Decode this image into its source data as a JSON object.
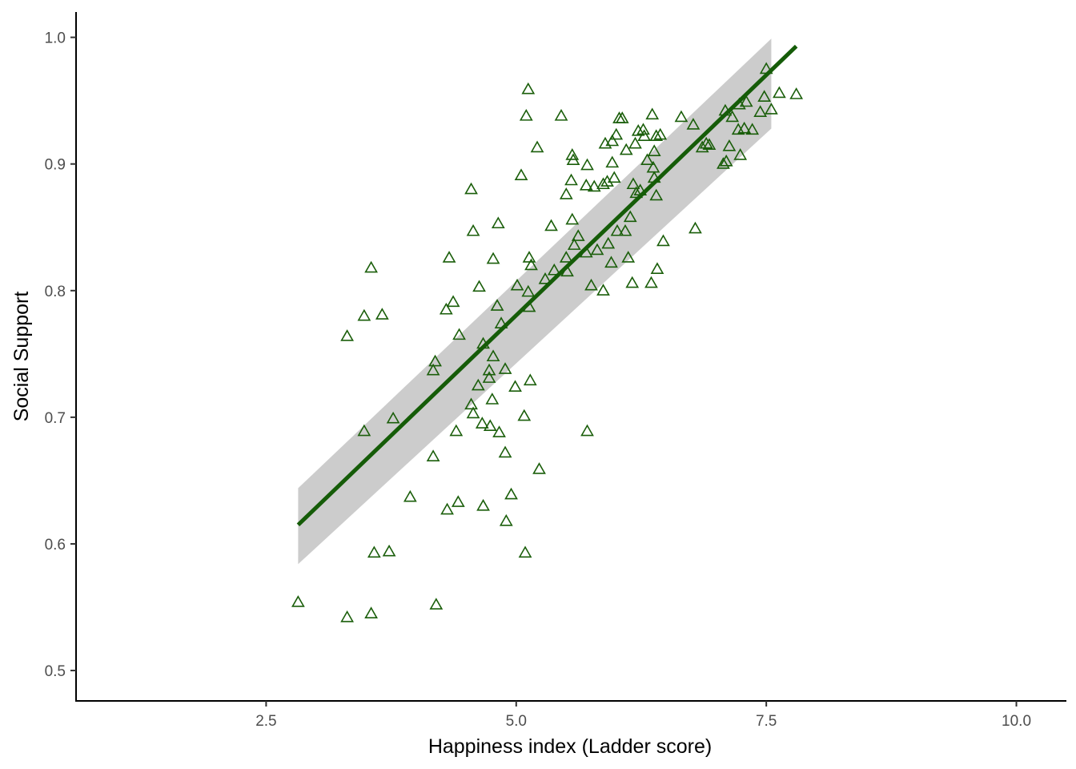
{
  "chart_data": {
    "type": "scatter",
    "title": "",
    "xlabel": "Happiness index (Ladder score)",
    "ylabel": "Social Support",
    "xlim": [
      0.6,
      10.5
    ],
    "ylim": [
      0.476,
      1.02
    ],
    "x_ticks": [
      2.5,
      5.0,
      7.5,
      10.0
    ],
    "x_tick_labels": [
      "2.5",
      "5.0",
      "7.5",
      "10.0"
    ],
    "y_ticks": [
      0.5,
      0.6,
      0.7,
      0.8,
      0.9,
      1.0
    ],
    "y_tick_labels": [
      "0.5",
      "0.6",
      "0.7",
      "0.8",
      "0.9",
      "1.0"
    ],
    "grid": false,
    "legend": "none",
    "marker": "open-triangle",
    "colors": {
      "points": "#1a5e0a",
      "fit_line": "#155c08",
      "confidence_band": "#cccccc",
      "axis": "#000000"
    },
    "fit": {
      "method": "linear",
      "x_range": [
        2.82,
        7.8
      ],
      "y_range": [
        0.615,
        0.993
      ],
      "ci_lower": [
        0.584,
        0.928
      ],
      "ci_upper": [
        0.644,
        0.999
      ],
      "ci_x_range": [
        2.82,
        7.55
      ]
    },
    "points": [
      [
        2.82,
        0.554
      ],
      [
        3.31,
        0.542
      ],
      [
        3.55,
        0.545
      ],
      [
        4.2,
        0.552
      ],
      [
        3.58,
        0.593
      ],
      [
        3.73,
        0.594
      ],
      [
        5.09,
        0.593
      ],
      [
        3.31,
        0.764
      ],
      [
        3.48,
        0.78
      ],
      [
        3.66,
        0.781
      ],
      [
        3.55,
        0.818
      ],
      [
        3.48,
        0.689
      ],
      [
        3.77,
        0.699
      ],
      [
        3.94,
        0.637
      ],
      [
        4.17,
        0.669
      ],
      [
        4.31,
        0.627
      ],
      [
        4.42,
        0.633
      ],
      [
        4.67,
        0.63
      ],
      [
        4.95,
        0.639
      ],
      [
        4.9,
        0.618
      ],
      [
        5.23,
        0.659
      ],
      [
        4.17,
        0.737
      ],
      [
        4.19,
        0.744
      ],
      [
        4.3,
        0.785
      ],
      [
        4.37,
        0.791
      ],
      [
        4.43,
        0.765
      ],
      [
        4.33,
        0.826
      ],
      [
        4.4,
        0.689
      ],
      [
        4.55,
        0.88
      ],
      [
        4.57,
        0.847
      ],
      [
        4.63,
        0.803
      ],
      [
        4.77,
        0.825
      ],
      [
        4.82,
        0.853
      ],
      [
        4.81,
        0.788
      ],
      [
        4.85,
        0.774
      ],
      [
        4.67,
        0.758
      ],
      [
        4.77,
        0.748
      ],
      [
        4.73,
        0.737
      ],
      [
        4.73,
        0.731
      ],
      [
        4.89,
        0.738
      ],
      [
        4.62,
        0.725
      ],
      [
        4.76,
        0.714
      ],
      [
        4.55,
        0.71
      ],
      [
        4.57,
        0.703
      ],
      [
        4.66,
        0.695
      ],
      [
        4.74,
        0.693
      ],
      [
        4.83,
        0.688
      ],
      [
        4.89,
        0.672
      ],
      [
        4.99,
        0.724
      ],
      [
        5.08,
        0.701
      ],
      [
        5.14,
        0.729
      ],
      [
        5.01,
        0.804
      ],
      [
        5.12,
        0.799
      ],
      [
        5.13,
        0.787
      ],
      [
        5.13,
        0.826
      ],
      [
        5.15,
        0.82
      ],
      [
        5.05,
        0.891
      ],
      [
        5.1,
        0.938
      ],
      [
        5.12,
        0.959
      ],
      [
        5.21,
        0.913
      ],
      [
        5.29,
        0.809
      ],
      [
        5.35,
        0.851
      ],
      [
        5.38,
        0.816
      ],
      [
        5.45,
        0.938
      ],
      [
        5.5,
        0.826
      ],
      [
        5.51,
        0.815
      ],
      [
        5.5,
        0.876
      ],
      [
        5.55,
        0.887
      ],
      [
        5.56,
        0.856
      ],
      [
        5.56,
        0.907
      ],
      [
        5.57,
        0.903
      ],
      [
        5.58,
        0.836
      ],
      [
        5.62,
        0.843
      ],
      [
        5.7,
        0.83
      ],
      [
        5.7,
        0.883
      ],
      [
        5.71,
        0.899
      ],
      [
        5.75,
        0.804
      ],
      [
        5.71,
        0.689
      ],
      [
        5.78,
        0.882
      ],
      [
        5.81,
        0.832
      ],
      [
        5.87,
        0.8
      ],
      [
        5.87,
        0.884
      ],
      [
        5.89,
        0.916
      ],
      [
        5.91,
        0.886
      ],
      [
        5.92,
        0.837
      ],
      [
        5.95,
        0.822
      ],
      [
        5.96,
        0.918
      ],
      [
        5.96,
        0.901
      ],
      [
        5.98,
        0.889
      ],
      [
        6.0,
        0.923
      ],
      [
        6.01,
        0.847
      ],
      [
        6.03,
        0.936
      ],
      [
        6.06,
        0.936
      ],
      [
        6.09,
        0.847
      ],
      [
        6.1,
        0.911
      ],
      [
        6.12,
        0.826
      ],
      [
        6.14,
        0.858
      ],
      [
        6.16,
        0.806
      ],
      [
        6.17,
        0.884
      ],
      [
        6.19,
        0.916
      ],
      [
        6.2,
        0.877
      ],
      [
        6.22,
        0.926
      ],
      [
        6.24,
        0.879
      ],
      [
        6.27,
        0.927
      ],
      [
        6.28,
        0.922
      ],
      [
        6.31,
        0.903
      ],
      [
        6.35,
        0.806
      ],
      [
        6.36,
        0.939
      ],
      [
        6.37,
        0.897
      ],
      [
        6.38,
        0.91
      ],
      [
        6.38,
        0.889
      ],
      [
        6.4,
        0.922
      ],
      [
        6.4,
        0.875
      ],
      [
        6.41,
        0.817
      ],
      [
        6.44,
        0.923
      ],
      [
        6.47,
        0.839
      ],
      [
        6.65,
        0.937
      ],
      [
        6.77,
        0.931
      ],
      [
        6.79,
        0.849
      ],
      [
        6.86,
        0.913
      ],
      [
        6.9,
        0.916
      ],
      [
        6.93,
        0.915
      ],
      [
        7.07,
        0.9
      ],
      [
        7.09,
        0.942
      ],
      [
        7.1,
        0.902
      ],
      [
        7.13,
        0.914
      ],
      [
        7.16,
        0.937
      ],
      [
        7.22,
        0.927
      ],
      [
        7.23,
        0.947
      ],
      [
        7.24,
        0.907
      ],
      [
        7.28,
        0.928
      ],
      [
        7.3,
        0.949
      ],
      [
        7.36,
        0.927
      ],
      [
        7.44,
        0.941
      ],
      [
        7.48,
        0.953
      ],
      [
        7.5,
        0.975
      ],
      [
        7.55,
        0.943
      ],
      [
        7.63,
        0.956
      ],
      [
        7.8,
        0.955
      ]
    ]
  }
}
